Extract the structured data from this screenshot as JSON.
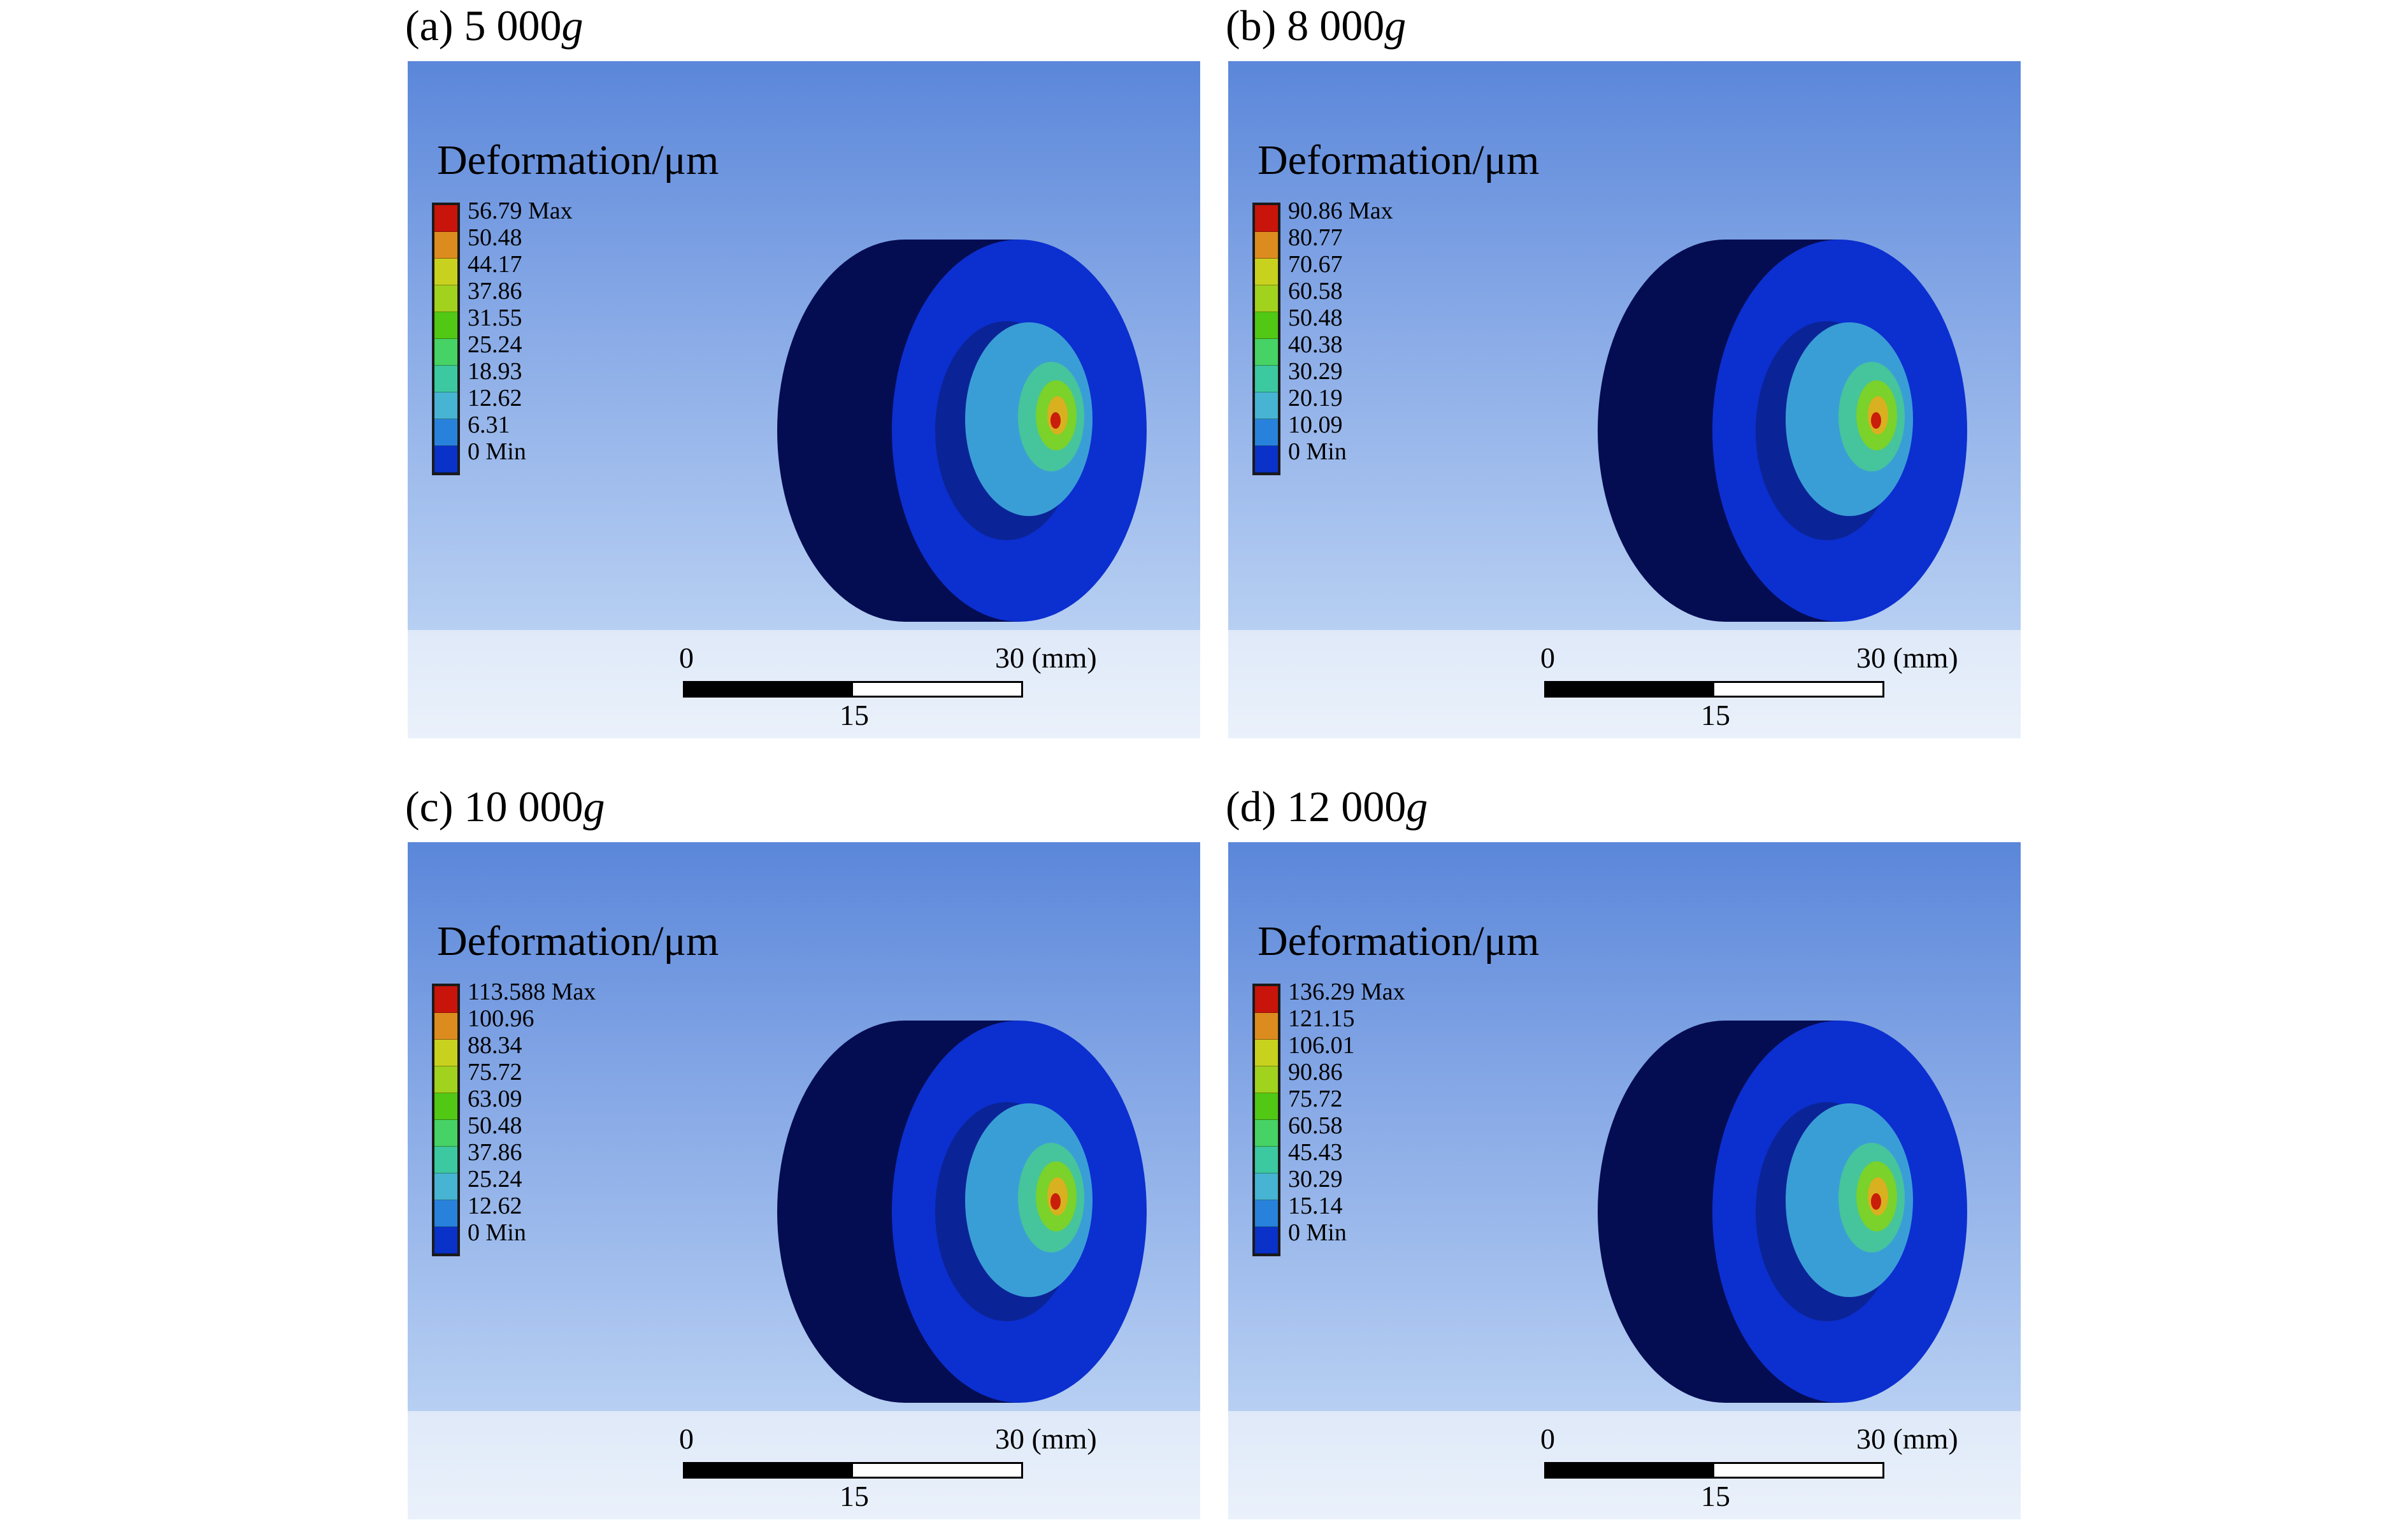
{
  "panels": [
    {
      "id": "a",
      "title_prefix": "(a) 5 000",
      "title_unit": "g",
      "legend_title": "Deformation/μm",
      "legend_labels": [
        "56.79 Max",
        "50.48",
        "44.17",
        "37.86",
        "31.55",
        "25.24",
        "18.93",
        "12.62",
        "6.31",
        "0 Min"
      ],
      "scale": {
        "zero": "0",
        "max": "30 (mm)",
        "mid": "15"
      }
    },
    {
      "id": "b",
      "title_prefix": "(b) 8 000",
      "title_unit": "g",
      "legend_title": "Deformation/μm",
      "legend_labels": [
        "90.86 Max",
        "80.77",
        "70.67",
        "60.58",
        "50.48",
        "40.38",
        "30.29",
        "20.19",
        "10.09",
        "0 Min"
      ],
      "scale": {
        "zero": "0",
        "max": "30 (mm)",
        "mid": "15"
      }
    },
    {
      "id": "c",
      "title_prefix": "(c) 10 000",
      "title_unit": "g",
      "legend_title": "Deformation/μm",
      "legend_labels": [
        "113.588 Max",
        "100.96",
        "88.34",
        "75.72",
        "63.09",
        "50.48",
        "37.86",
        "25.24",
        "12.62",
        "0 Min"
      ],
      "scale": {
        "zero": "0",
        "max": "30 (mm)",
        "mid": "15"
      }
    },
    {
      "id": "d",
      "title_prefix": "(d) 12 000",
      "title_unit": "g",
      "legend_title": "Deformation/μm",
      "legend_labels": [
        "136.29 Max",
        "121.15",
        "106.01",
        "90.86",
        "75.72",
        "60.58",
        "45.43",
        "30.29",
        "15.14",
        "0 Min"
      ],
      "scale": {
        "zero": "0",
        "max": "30 (mm)",
        "mid": "15"
      }
    }
  ],
  "legend_colors": [
    "#c8140a",
    "#dc8c1e",
    "#c8d21e",
    "#a0d21e",
    "#50c814",
    "#46d264",
    "#3cc8a0",
    "#46b4d2",
    "#2882dc",
    "#0a32c8"
  ],
  "model_colors": {
    "back_face": "#050d52",
    "front_face": "#0c2fd0",
    "recess": "#0a2497",
    "hub": "#3a9ed6",
    "hub_ring": "#46c49c",
    "core": "#7ad22a",
    "hot": "#c81e0a"
  }
}
